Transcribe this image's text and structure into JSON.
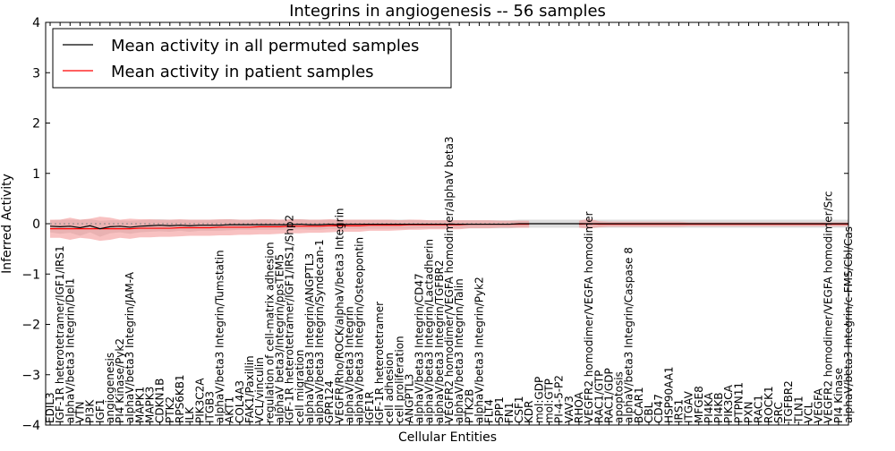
{
  "chart_data": {
    "type": "line",
    "title": "Integrins in angiogenesis -- 56 samples",
    "xlabel": "Cellular Entities",
    "ylabel": "Inferred Activity",
    "ylim": [
      -4,
      4
    ],
    "yticks": [
      "4",
      "3",
      "2",
      "1",
      "0",
      "−1",
      "−2",
      "−3",
      "−4"
    ],
    "legend_position": "top-left",
    "grid": false,
    "categories": [
      "EDIL3",
      "IGF-1R heterotetramer/IGF1/IRS1",
      "alphaV/beta3 Integrin/Del1",
      "VTN",
      "PI3K",
      "IGF1",
      "angiogenesis",
      "PI4 Kinase/Pyk2",
      "alphaV/beta3 Integrin/JAM-A",
      "MAPK1",
      "MAPK3",
      "CDKN1B",
      "PTK2",
      "RPS6KB1",
      "ILK",
      "PIK3C2A",
      "ITGB3",
      "alphaV/beta3 Integrin/Tumstatin",
      "AKT1",
      "COL4A3",
      "FAK1/Paxillin",
      "VCL/vinculin",
      "regulation of cell-matrix adhesion",
      "alphaV beta3/Integrin/ppsTEM5",
      "IGF-1R heterotetramer/IGF1/IRS1/Shp2",
      "cell migration",
      "alphaV/beta3 Integrin/ANGPTL3",
      "alphaV/beta3 Integrin/Syndecan-1",
      "GPR124",
      "VEGFR/Rho/ROCK/alphaV/beta3 Integrin",
      "alphaV/beta3 Integrin",
      "alphaV/beta3 Integrin/Osteopontin",
      "IGF1R",
      "IGF-1R heterotetramer",
      "cell adhesion",
      "cell proliferation",
      "ANGPTL3",
      "alphaV/beta3 Integrin/CD47",
      "alphaV/beta3 Integrin/Lactadherin",
      "alphaV/beta3 Integrin/TGFBR2",
      "VEGFR2 homodimer/VEGFA homodimer/alphaV beta3",
      "alphaV/beta3 Integrin/Talin",
      "PTK2B",
      "alphaV/beta3 Integrin/Pyk2",
      "FLT4",
      "SPP1",
      "FN1",
      "CSF1",
      "KDR",
      "mol:GDP",
      "mol:GTP",
      "PI-4-5-P2",
      "VAV3",
      "RHOA",
      "VEGFR2 homodimer/VEGFA homodimer",
      "RAC1/GTP",
      "RAC1/GDP",
      "apoptosis",
      "alphaV/beta3 Integrin/Caspase 8",
      "BCAR1",
      "CBL",
      "CD47",
      "HSP90AA1",
      "IRS1",
      "ITGAV",
      "MFGE8",
      "PI4KA",
      "PI4KB",
      "PIK3CA",
      "PTPN11",
      "PXN",
      "RAC1",
      "ROCK1",
      "SRC",
      "TGFBR2",
      "TLN1",
      "VCL",
      "VEGFA",
      "VEGFR2 homodimer/VEGFA homodimer/Src",
      "PI4 Kinase",
      "alphaV/beta3 Integrin/c-FMS/Cbl/Cas"
    ],
    "series": [
      {
        "name": "Mean activity in all permuted samples",
        "color": "#000000",
        "values": [
          -0.05,
          -0.06,
          -0.05,
          -0.08,
          -0.04,
          -0.1,
          -0.06,
          -0.05,
          -0.07,
          -0.05,
          -0.04,
          -0.03,
          -0.04,
          -0.03,
          -0.04,
          -0.03,
          -0.03,
          -0.03,
          -0.02,
          -0.02,
          -0.02,
          -0.02,
          -0.02,
          -0.02,
          -0.02,
          -0.01,
          -0.02,
          -0.02,
          -0.01,
          -0.02,
          -0.01,
          -0.01,
          -0.01,
          -0.01,
          -0.01,
          -0.01,
          -0.01,
          -0.01,
          -0.01,
          -0.01,
          -0.01,
          -0.01,
          -0.01,
          -0.01,
          -0.01,
          -0.01,
          -0.01,
          0.0,
          0.0,
          0.0,
          0.0,
          0.0,
          0.0,
          0.0,
          0.0,
          0.0,
          0.0,
          0.0,
          0.0,
          0.0,
          0.0,
          0.0,
          0.0,
          0.0,
          0.0,
          0.0,
          0.0,
          0.0,
          0.0,
          0.0,
          0.0,
          0.0,
          0.0,
          0.0,
          0.0,
          0.0,
          0.0,
          0.0,
          0.0,
          0.0,
          0.0
        ],
        "spread": [
          0.12,
          0.14,
          0.13,
          0.16,
          0.13,
          0.16,
          0.13,
          0.12,
          0.13,
          0.12,
          0.12,
          0.12,
          0.12,
          0.11,
          0.12,
          0.11,
          0.11,
          0.11,
          0.11,
          0.1,
          0.1,
          0.1,
          0.1,
          0.1,
          0.1,
          0.1,
          0.1,
          0.1,
          0.09,
          0.1,
          0.09,
          0.09,
          0.09,
          0.09,
          0.09,
          0.09,
          0.09,
          0.08,
          0.08,
          0.08,
          0.08,
          0.08,
          0.08,
          0.08,
          0.08,
          0.08,
          0.08,
          0.08,
          0.08,
          0.08,
          0.08,
          0.08,
          0.08,
          0.08,
          0.08,
          0.08,
          0.08,
          0.08,
          0.08,
          0.08,
          0.08,
          0.08,
          0.08,
          0.08,
          0.08,
          0.08,
          0.08,
          0.08,
          0.08,
          0.08,
          0.08,
          0.08,
          0.08,
          0.08,
          0.08,
          0.08,
          0.08,
          0.08,
          0.08,
          0.08,
          0.08
        ]
      },
      {
        "name": "Mean activity in patient samples",
        "color": "#ff0000",
        "values": [
          -0.1,
          -0.1,
          -0.1,
          -0.1,
          -0.1,
          -0.1,
          -0.1,
          -0.1,
          -0.1,
          -0.09,
          -0.09,
          -0.09,
          -0.09,
          -0.08,
          -0.08,
          -0.08,
          -0.08,
          -0.07,
          -0.07,
          -0.07,
          -0.07,
          -0.06,
          -0.06,
          -0.06,
          -0.05,
          -0.05,
          -0.05,
          -0.05,
          -0.04,
          -0.04,
          -0.04,
          -0.04,
          -0.03,
          -0.03,
          -0.03,
          -0.03,
          -0.02,
          -0.02,
          -0.02,
          -0.02,
          -0.02,
          -0.02,
          -0.01,
          -0.01,
          -0.01,
          -0.01,
          -0.01,
          -0.01,
          -0.01,
          null,
          null,
          null,
          null,
          -0.01,
          0.0,
          -0.01,
          -0.01,
          -0.01,
          -0.01,
          -0.01,
          -0.01,
          -0.01,
          -0.01,
          -0.01,
          -0.01,
          -0.01,
          -0.01,
          -0.01,
          -0.01,
          -0.01,
          -0.01,
          -0.01,
          -0.01,
          -0.01,
          -0.01,
          -0.01,
          -0.01,
          -0.01,
          -0.01,
          -0.01,
          -0.01
        ],
        "spread": [
          0.18,
          0.18,
          0.22,
          0.18,
          0.2,
          0.24,
          0.22,
          0.18,
          0.2,
          0.18,
          0.18,
          0.17,
          0.17,
          0.17,
          0.16,
          0.16,
          0.16,
          0.16,
          0.16,
          0.15,
          0.15,
          0.15,
          0.15,
          0.14,
          0.14,
          0.14,
          0.13,
          0.13,
          0.13,
          0.12,
          0.12,
          0.12,
          0.11,
          0.11,
          0.11,
          0.1,
          0.1,
          0.1,
          0.09,
          0.09,
          0.09,
          0.09,
          0.08,
          0.08,
          0.08,
          0.07,
          0.07,
          0.07,
          0.07,
          null,
          null,
          null,
          null,
          0.07,
          0.1,
          0.06,
          0.05,
          0.05,
          0.05,
          0.05,
          0.05,
          0.05,
          0.05,
          0.05,
          0.04,
          0.04,
          0.04,
          0.04,
          0.04,
          0.04,
          0.04,
          0.04,
          0.04,
          0.04,
          0.04,
          0.04,
          0.04,
          0.04,
          0.04,
          0.04,
          0.04
        ]
      }
    ],
    "band_colors": {
      "permuted": "#cfcfcf",
      "patient": "#f28e8e"
    },
    "baseline_color": "#888888"
  }
}
